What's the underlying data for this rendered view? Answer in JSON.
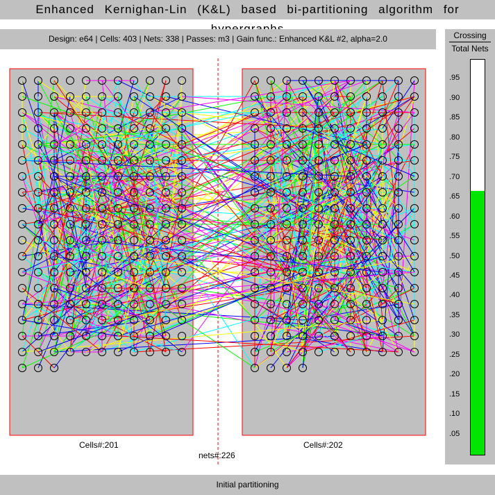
{
  "window": {
    "title": "Enhanced Kernighan-Lin (K&L) based bi-partitioning algorithm for hypergraphs"
  },
  "info": {
    "text": "Design: e64  |  Cells: 403  |  Nets: 338  |  Passes: m3  |  Gain func.: Enhanced K&L #2, alpha=2.0"
  },
  "partitions": {
    "left_label": "Cells#:201",
    "right_label": "Cells#:202",
    "nets_label": "nets#:226"
  },
  "meter": {
    "title": "Crossing",
    "subtitle": "Total Nets",
    "value": 0.668,
    "ticks": [
      ".95",
      ".90",
      ".85",
      ".80",
      ".75",
      ".70",
      ".65",
      ".60",
      ".55",
      ".50",
      ".45",
      ".40",
      ".35",
      ".30",
      ".25",
      ".20",
      ".15",
      ".10",
      ".05"
    ],
    "fill_color": "#00e600"
  },
  "status": {
    "text": "Initial partitioning"
  },
  "colors": {
    "partition_fill": "#c0c0c0",
    "partition_border": "#ff0000",
    "cut_line": "#ff0000",
    "net_palette": [
      "#ff0000",
      "#00ff00",
      "#0000ff",
      "#ffff00",
      "#ff00ff",
      "#00ffff"
    ]
  }
}
